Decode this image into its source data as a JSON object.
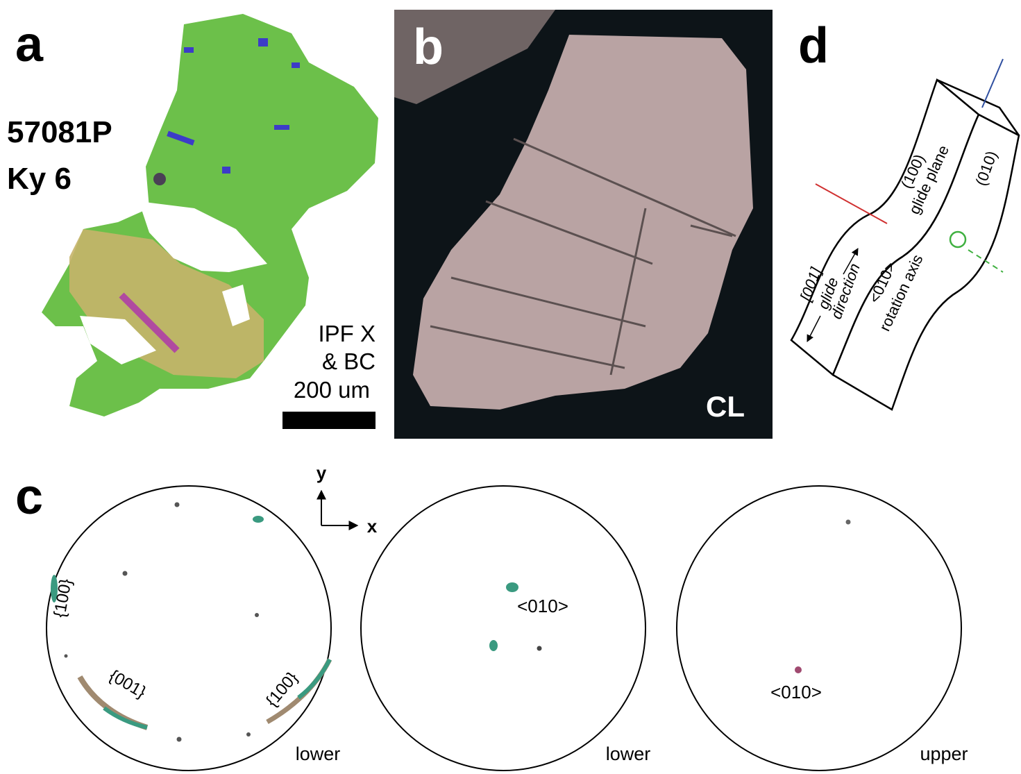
{
  "panels": {
    "a": {
      "label": "a",
      "sample": [
        "57081P",
        "Ky 6"
      ],
      "legend": [
        "IPF X",
        "& BC"
      ],
      "scale_bar": "200 um"
    },
    "b": {
      "label": "b",
      "mode": "CL"
    },
    "c": {
      "label": "c",
      "axes": [
        "y",
        "x"
      ],
      "pole_figures": [
        {
          "labels": [
            "{100}",
            "{001}",
            "{100}"
          ],
          "hemisphere": "lower"
        },
        {
          "labels": [
            "<010>"
          ],
          "hemisphere": "lower"
        },
        {
          "labels": [
            "<010>"
          ],
          "hemisphere": "upper"
        }
      ]
    },
    "d": {
      "label": "d",
      "plane_labels": [
        "(100)",
        "glide plane",
        "(010)"
      ],
      "direction_labels": [
        "[001]",
        "glide",
        "direction"
      ],
      "axis_labels": [
        "<010>",
        "rotation axis"
      ]
    }
  }
}
